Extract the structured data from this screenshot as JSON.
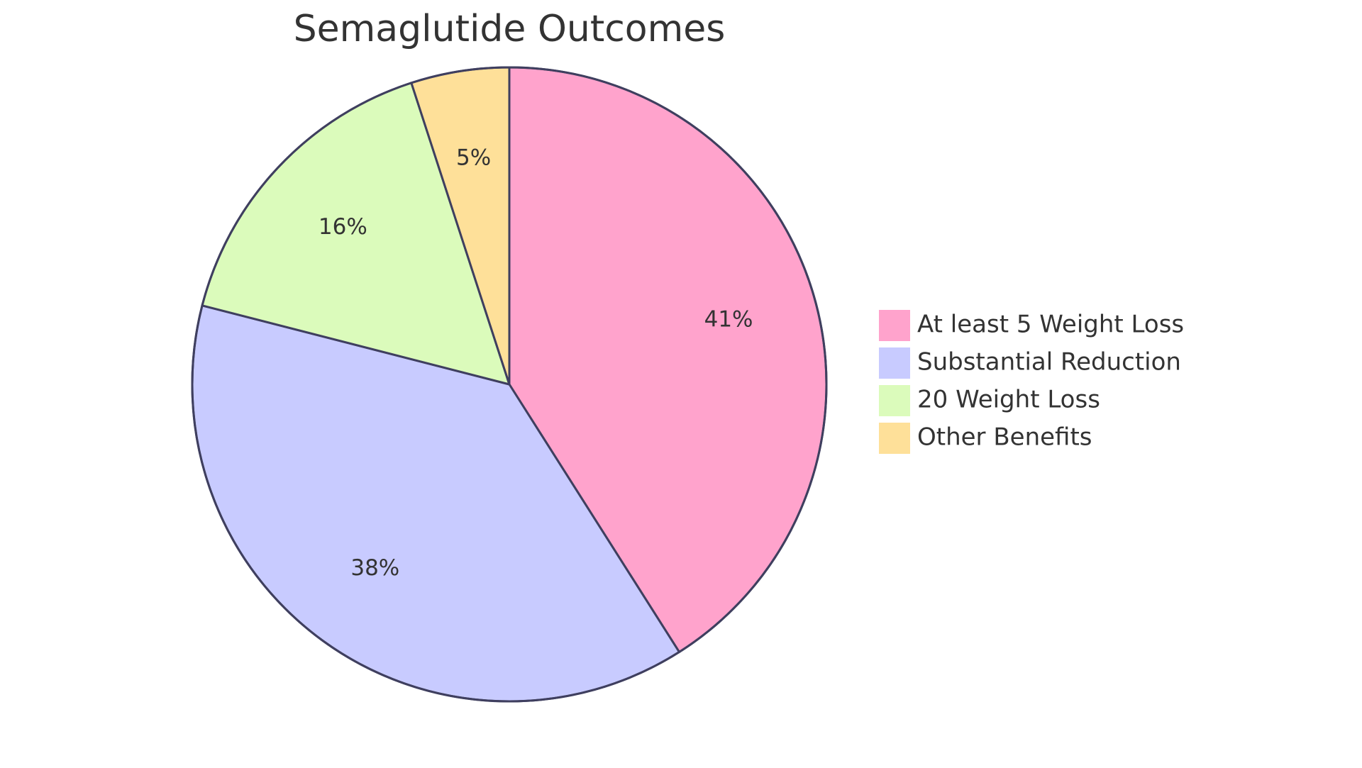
{
  "chart_data": {
    "type": "pie",
    "title": "Semaglutide Outcomes",
    "slices": [
      {
        "label": "At least 5 Weight Loss",
        "value": 41,
        "display": "41%",
        "color": "#ffa3cc"
      },
      {
        "label": "Substantial Reduction",
        "value": 38,
        "display": "38%",
        "color": "#c8cbff"
      },
      {
        "label": "20 Weight Loss",
        "value": 16,
        "display": "16%",
        "color": "#dbfbbb"
      },
      {
        "label": "Other Benefits",
        "value": 5,
        "display": "5%",
        "color": "#fee099"
      }
    ],
    "start_angle_deg": 0,
    "direction": "clockwise",
    "legend_position": "right"
  }
}
